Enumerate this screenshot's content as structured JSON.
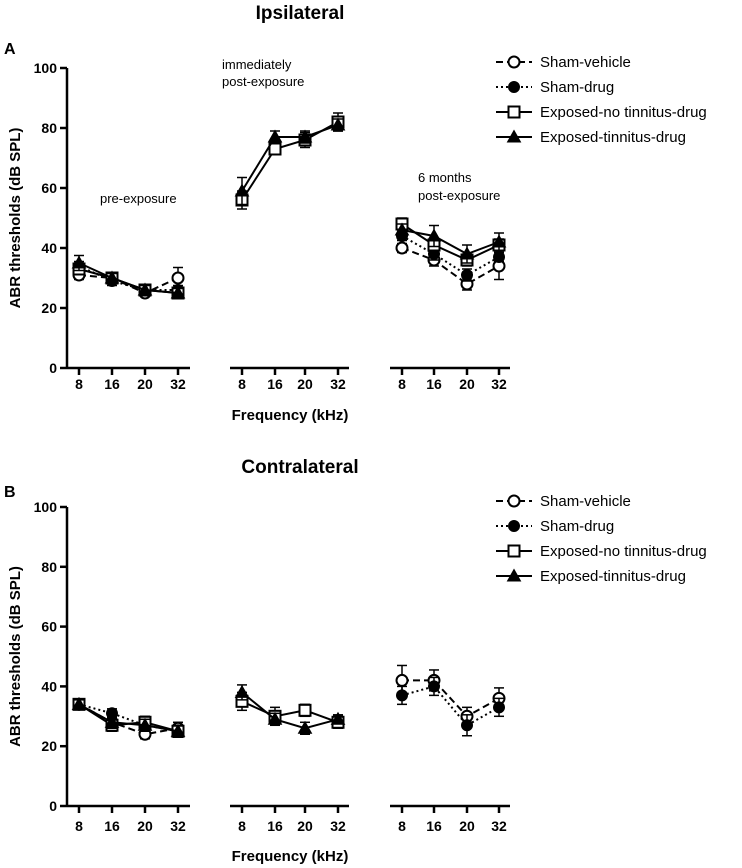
{
  "chart_data": [
    {
      "type": "line",
      "panel_label": "A",
      "title": "Ipsilateral",
      "xlabel": "Frequency (kHz)",
      "ylabel": "ABR thresholds (dB SPL)",
      "ylim": [
        0,
        100
      ],
      "yticks": [
        "0",
        "20",
        "40",
        "60",
        "80",
        "100"
      ],
      "groups": [
        {
          "annotation": [
            "pre-exposure"
          ],
          "categories": [
            "8",
            "16",
            "20",
            "32"
          ]
        },
        {
          "annotation": [
            "immediately",
            "post-exposure"
          ],
          "categories": [
            "8",
            "16",
            "20",
            "32"
          ]
        },
        {
          "annotation": [
            "6 months",
            "post-exposure"
          ],
          "categories": [
            "8",
            "16",
            "20",
            "32"
          ]
        }
      ],
      "series": [
        {
          "name": "Sham-vehicle",
          "values": [
            [
              31,
              30,
              25,
              30
            ],
            null,
            [
              40,
              36,
              28,
              34
            ]
          ],
          "errors": [
            [
              1.5,
              1.5,
              1,
              3.5
            ],
            null,
            [
              1.5,
              2,
              2,
              4.5
            ]
          ]
        },
        {
          "name": "Sham-drug",
          "values": [
            [
              34,
              29,
              26,
              26
            ],
            null,
            [
              44,
              38,
              31,
              37
            ]
          ],
          "errors": [
            [
              1.5,
              1.5,
              1,
              1.5
            ],
            null,
            [
              1.5,
              2,
              2,
              1.5
            ]
          ]
        },
        {
          "name": "Exposed-no tinnitus-drug",
          "values": [
            [
              33,
              30,
              26,
              25
            ],
            [
              56,
              73,
              76,
              82
            ],
            [
              48,
              41,
              36,
              41
            ]
          ],
          "errors": [
            [
              1.5,
              1.5,
              1.5,
              1.5
            ],
            [
              3,
              1.5,
              2.5,
              3
            ],
            [
              2,
              2,
              2,
              2
            ]
          ]
        },
        {
          "name": "Exposed-tinnitus-drug",
          "values": [
            [
              35,
              30,
              26,
              25
            ],
            [
              59,
              77,
              77,
              81
            ],
            [
              46,
              44,
              38,
              42
            ]
          ],
          "errors": [
            [
              2.5,
              1.5,
              1.5,
              1.5
            ],
            [
              4.5,
              2,
              2,
              2
            ],
            [
              2,
              3.5,
              3,
              3
            ]
          ]
        }
      ]
    },
    {
      "type": "line",
      "panel_label": "B",
      "title": "Contralateral",
      "xlabel": "Frequency (kHz)",
      "ylabel": "ABR thresholds (dB SPL)",
      "ylim": [
        0,
        100
      ],
      "yticks": [
        "0",
        "20",
        "40",
        "60",
        "80",
        "100"
      ],
      "groups": [
        {
          "annotation": [],
          "categories": [
            "8",
            "16",
            "20",
            "32"
          ]
        },
        {
          "annotation": [],
          "categories": [
            "8",
            "16",
            "20",
            "32"
          ]
        },
        {
          "annotation": [],
          "categories": [
            "8",
            "16",
            "20",
            "32"
          ]
        }
      ],
      "series": [
        {
          "name": "Sham-vehicle",
          "values": [
            [
              34,
              28,
              24,
              26
            ],
            null,
            [
              42,
              42,
              30,
              36
            ]
          ],
          "errors": [
            [
              1.5,
              1.5,
              1.5,
              2
            ],
            null,
            [
              5,
              3.5,
              3,
              3.5
            ]
          ]
        },
        {
          "name": "Sham-drug",
          "values": [
            [
              34,
              31,
              27,
              25
            ],
            null,
            [
              37,
              40,
              27,
              33
            ]
          ],
          "errors": [
            [
              1.5,
              1.5,
              2,
              2
            ],
            null,
            [
              3,
              3,
              3.5,
              3
            ]
          ]
        },
        {
          "name": "Exposed-no tinnitus-drug",
          "values": [
            [
              34,
              27,
              28,
              25
            ],
            [
              35,
              30,
              32,
              28
            ],
            null
          ],
          "errors": [
            [
              1.5,
              2,
              2,
              2
            ],
            [
              3,
              3,
              2,
              2
            ],
            null
          ]
        },
        {
          "name": "Exposed-tinnitus-drug",
          "values": [
            [
              34,
              28,
              27,
              25
            ],
            [
              38,
              29,
              26,
              29
            ],
            null
          ],
          "errors": [
            [
              1.5,
              2,
              2,
              2
            ],
            [
              2.5,
              2,
              2,
              1.5
            ],
            null
          ]
        }
      ]
    }
  ],
  "legend": {
    "entries": [
      "Sham-vehicle",
      "Sham-drug",
      "Exposed-no tinnitus-drug",
      "Exposed-tinnitus-drug"
    ],
    "markers": [
      "open-circle",
      "filled-circle",
      "open-square",
      "filled-triangle"
    ],
    "line_styles": [
      "dashed",
      "dotted",
      "solid",
      "solid"
    ],
    "placement": "right"
  }
}
